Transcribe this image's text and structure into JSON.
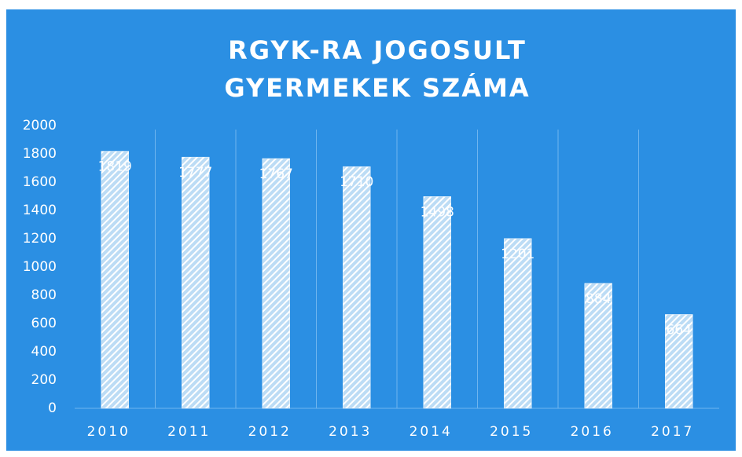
{
  "chart_data": {
    "type": "bar",
    "title": "RGYK-RA JOGOSULT GYERMEKEK SZÁMA",
    "categories": [
      "2010",
      "2011",
      "2012",
      "2013",
      "2014",
      "2015",
      "2016",
      "2017"
    ],
    "values": [
      1819,
      1777,
      1767,
      1710,
      1498,
      1201,
      884,
      664
    ],
    "color": "#ffffff",
    "ylim": [
      0,
      2000
    ],
    "yticks": [
      0,
      200,
      400,
      600,
      800,
      1000,
      1200,
      1400,
      1600,
      1800,
      2000
    ],
    "grid": false
  }
}
